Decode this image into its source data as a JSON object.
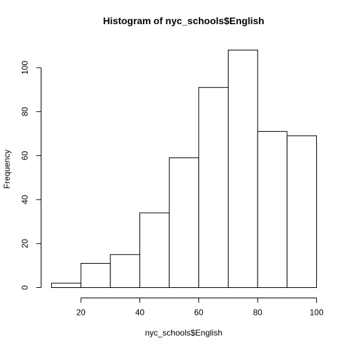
{
  "chart_data": {
    "type": "bar",
    "subtype": "histogram",
    "title": "Histogram of nyc_schools$English",
    "xlabel": "nyc_schools$English",
    "ylabel": "Frequency",
    "bins": [
      {
        "start": 10,
        "end": 20,
        "count": 2
      },
      {
        "start": 20,
        "end": 30,
        "count": 11
      },
      {
        "start": 30,
        "end": 40,
        "count": 15
      },
      {
        "start": 40,
        "end": 50,
        "count": 34
      },
      {
        "start": 50,
        "end": 60,
        "count": 59
      },
      {
        "start": 60,
        "end": 70,
        "count": 91
      },
      {
        "start": 70,
        "end": 80,
        "count": 108
      },
      {
        "start": 80,
        "end": 90,
        "count": 71
      },
      {
        "start": 90,
        "end": 100,
        "count": 69
      }
    ],
    "xlim": [
      10,
      100
    ],
    "ylim": [
      0,
      108
    ],
    "x_ticks": [
      20,
      40,
      60,
      80,
      100
    ],
    "y_ticks": [
      0,
      20,
      40,
      60,
      80,
      100
    ],
    "grid": false,
    "legend": "none",
    "colors": {
      "bar_fill": "#ffffff",
      "bar_stroke": "#000000",
      "axis": "#000000",
      "text": "#000000"
    }
  }
}
